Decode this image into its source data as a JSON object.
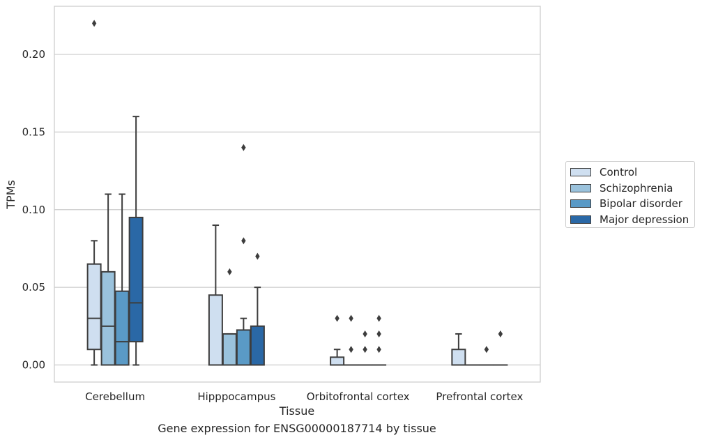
{
  "chart_data": {
    "type": "box",
    "caption": "Gene expression for ENSG00000187714 by tissue",
    "xlabel": "Tissue",
    "ylabel": "TPMs",
    "ylim": [
      -0.011,
      0.231
    ],
    "yticks": [
      0.0,
      0.05,
      0.1,
      0.15,
      0.2
    ],
    "ytick_labels": [
      "0.00",
      "0.05",
      "0.10",
      "0.15",
      "0.20"
    ],
    "grid": true,
    "legend_placement": "right",
    "categories": [
      "Cerebellum",
      "Hipppocampus",
      "Orbitofrontal cortex",
      "Prefrontal cortex"
    ],
    "series": [
      {
        "name": "Control",
        "color": "#cfdff0",
        "boxes": [
          {
            "whisker_low": 0.0,
            "q1": 0.01,
            "median": 0.03,
            "q3": 0.065,
            "whisker_high": 0.08,
            "outliers": [
              0.22
            ]
          },
          {
            "whisker_low": 0.0,
            "q1": 0.0,
            "median": 0.0,
            "q3": 0.045,
            "whisker_high": 0.09,
            "outliers": []
          },
          {
            "whisker_low": 0.0,
            "q1": 0.0,
            "median": 0.0,
            "q3": 0.005,
            "whisker_high": 0.01,
            "outliers": [
              0.03
            ]
          },
          {
            "whisker_low": 0.0,
            "q1": 0.0,
            "median": 0.0,
            "q3": 0.01,
            "whisker_high": 0.02,
            "outliers": []
          }
        ]
      },
      {
        "name": "Schizophrenia",
        "color": "#9ac2dc",
        "boxes": [
          {
            "whisker_low": 0.0,
            "q1": 0.0,
            "median": 0.025,
            "q3": 0.06,
            "whisker_high": 0.11,
            "outliers": []
          },
          {
            "whisker_low": 0.0,
            "q1": 0.0,
            "median": 0.0,
            "q3": 0.02,
            "whisker_high": 0.02,
            "outliers": [
              0.06
            ]
          },
          {
            "whisker_low": 0.0,
            "q1": 0.0,
            "median": 0.0,
            "q3": 0.0,
            "whisker_high": 0.0,
            "outliers": [
              0.01,
              0.03
            ]
          },
          {
            "whisker_low": 0.0,
            "q1": 0.0,
            "median": 0.0,
            "q3": 0.0,
            "whisker_high": 0.0,
            "outliers": []
          }
        ]
      },
      {
        "name": "Bipolar disorder",
        "color": "#5a9ac6",
        "boxes": [
          {
            "whisker_low": 0.0,
            "q1": 0.0,
            "median": 0.015,
            "q3": 0.0475,
            "whisker_high": 0.11,
            "outliers": []
          },
          {
            "whisker_low": 0.0,
            "q1": 0.0,
            "median": 0.0,
            "q3": 0.0225,
            "whisker_high": 0.03,
            "outliers": [
              0.08,
              0.14
            ]
          },
          {
            "whisker_low": 0.0,
            "q1": 0.0,
            "median": 0.0,
            "q3": 0.0,
            "whisker_high": 0.0,
            "outliers": [
              0.01,
              0.02
            ]
          },
          {
            "whisker_low": 0.0,
            "q1": 0.0,
            "median": 0.0,
            "q3": 0.0,
            "whisker_high": 0.0,
            "outliers": [
              0.01
            ]
          }
        ]
      },
      {
        "name": "Major depression",
        "color": "#2a68a6",
        "boxes": [
          {
            "whisker_low": 0.0,
            "q1": 0.015,
            "median": 0.04,
            "q3": 0.095,
            "whisker_high": 0.16,
            "outliers": []
          },
          {
            "whisker_low": 0.0,
            "q1": 0.0,
            "median": 0.0,
            "q3": 0.025,
            "whisker_high": 0.05,
            "outliers": [
              0.07
            ]
          },
          {
            "whisker_low": 0.0,
            "q1": 0.0,
            "median": 0.0,
            "q3": 0.0,
            "whisker_high": 0.0,
            "outliers": [
              0.01,
              0.02,
              0.03
            ]
          },
          {
            "whisker_low": 0.0,
            "q1": 0.0,
            "median": 0.0,
            "q3": 0.0,
            "whisker_high": 0.0,
            "outliers": [
              0.02
            ]
          }
        ]
      }
    ]
  }
}
